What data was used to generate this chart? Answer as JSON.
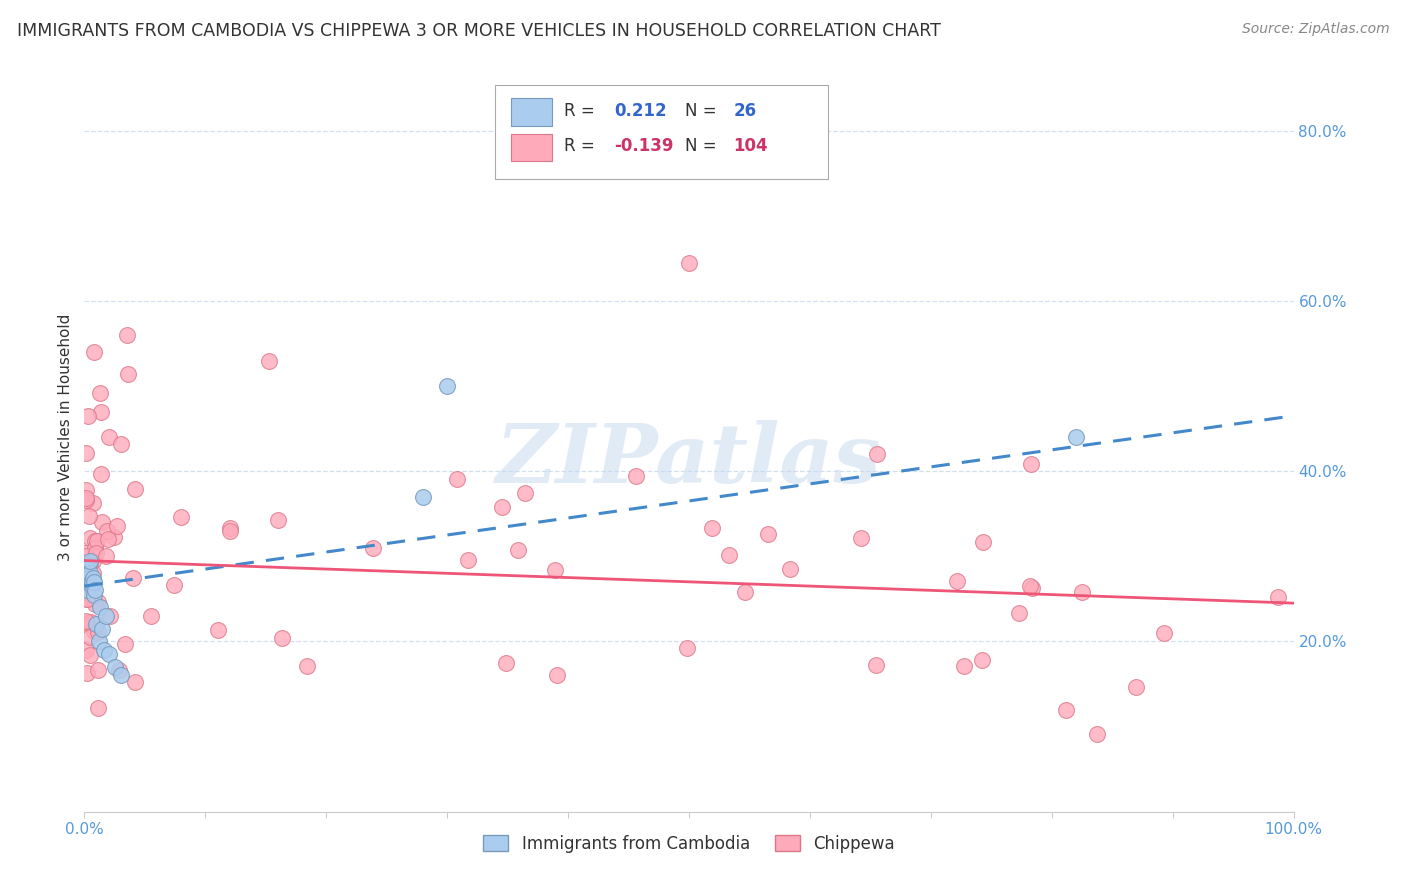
{
  "title": "IMMIGRANTS FROM CAMBODIA VS CHIPPEWA 3 OR MORE VEHICLES IN HOUSEHOLD CORRELATION CHART",
  "source": "Source: ZipAtlas.com",
  "ylabel": "3 or more Vehicles in Household",
  "xlim": [
    0.0,
    1.0
  ],
  "ylim": [
    0.0,
    0.88
  ],
  "xtick_pos": [
    0.0,
    0.1,
    0.2,
    0.3,
    0.4,
    0.5,
    0.6,
    0.7,
    0.8,
    0.9,
    1.0
  ],
  "xtick_labels": [
    "0.0%",
    "",
    "",
    "",
    "",
    "",
    "",
    "",
    "",
    "",
    "100.0%"
  ],
  "ytick_pos": [
    0.0,
    0.2,
    0.4,
    0.6,
    0.8
  ],
  "ytick_labels": [
    "",
    "20.0%",
    "40.0%",
    "60.0%",
    "80.0%"
  ],
  "cambodia_color": "#aaccee",
  "cambodia_edge": "#7799bb",
  "chippewa_color": "#ffaabb",
  "chippewa_edge": "#dd7788",
  "cambodia_R": "0.212",
  "cambodia_N": "26",
  "chippewa_R": "-0.139",
  "chippewa_N": "104",
  "legend_label_cambodia": "Immigrants from Cambodia",
  "legend_label_chippewa": "Chippewa",
  "watermark": "ZIPatlas",
  "tick_color": "#5599dd",
  "title_fontsize": 12.5,
  "source_fontsize": 10,
  "tick_fontsize": 11,
  "ylabel_fontsize": 11
}
